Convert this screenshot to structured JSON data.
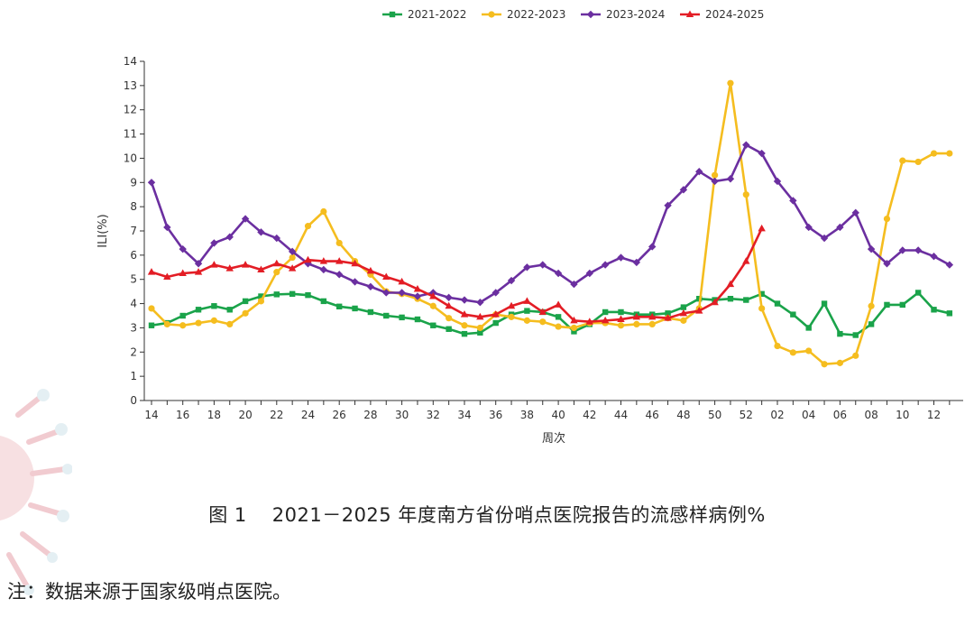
{
  "chart_data": {
    "type": "line",
    "title": "",
    "xlabel": "周次",
    "ylabel": "ILI(%)",
    "ylim": [
      0,
      14
    ],
    "yticks": [
      0,
      1,
      2,
      3,
      4,
      5,
      6,
      7,
      8,
      9,
      10,
      11,
      12,
      13,
      14
    ],
    "x_tick_labels": [
      "14",
      "16",
      "18",
      "20",
      "22",
      "24",
      "26",
      "28",
      "30",
      "32",
      "34",
      "36",
      "38",
      "40",
      "42",
      "44",
      "46",
      "48",
      "50",
      "52",
      "02",
      "04",
      "06",
      "08",
      "10",
      "12"
    ],
    "weeks": [
      14,
      15,
      16,
      17,
      18,
      19,
      20,
      21,
      22,
      23,
      24,
      25,
      26,
      27,
      28,
      29,
      30,
      31,
      32,
      33,
      34,
      35,
      36,
      37,
      38,
      39,
      40,
      41,
      42,
      43,
      44,
      45,
      46,
      47,
      48,
      49,
      50,
      51,
      52,
      1,
      2,
      3,
      4,
      5,
      6,
      7,
      8,
      9,
      10,
      11,
      12,
      13
    ],
    "grid": false,
    "legend_position": "top",
    "series": [
      {
        "name": "2021-2022",
        "color": "#1aa34a",
        "marker": "square",
        "values": [
          3.1,
          3.2,
          3.5,
          3.75,
          3.9,
          3.75,
          4.1,
          4.3,
          4.38,
          4.4,
          4.35,
          4.1,
          3.88,
          3.8,
          3.65,
          3.5,
          3.43,
          3.35,
          3.1,
          2.95,
          2.75,
          2.8,
          3.2,
          3.55,
          3.7,
          3.65,
          3.45,
          2.85,
          3.15,
          3.65,
          3.65,
          3.55,
          3.55,
          3.6,
          3.85,
          4.2,
          4.15,
          4.2,
          4.15,
          4.4,
          4.0,
          3.55,
          3.0,
          4.0,
          2.75,
          2.7,
          3.15,
          3.95,
          3.95,
          4.45,
          3.75,
          3.6
        ]
      },
      {
        "name": "2022-2023",
        "color": "#f5bd1f",
        "marker": "circle",
        "values": [
          3.8,
          3.15,
          3.1,
          3.2,
          3.3,
          3.15,
          3.6,
          4.1,
          5.3,
          5.9,
          7.2,
          7.8,
          6.5,
          5.75,
          5.2,
          4.5,
          4.4,
          4.2,
          3.9,
          3.4,
          3.1,
          3.0,
          3.55,
          3.45,
          3.3,
          3.25,
          3.05,
          3.0,
          3.2,
          3.2,
          3.1,
          3.15,
          3.15,
          3.4,
          3.3,
          3.8,
          9.3,
          13.1,
          8.5,
          3.8,
          2.25,
          1.98,
          2.05,
          1.5,
          1.55,
          1.85,
          3.9,
          7.5,
          9.9,
          9.85,
          10.2,
          10.2
        ]
      },
      {
        "name": "2023-2024",
        "color": "#6b2fa0",
        "marker": "diamond",
        "values": [
          9.0,
          7.15,
          6.25,
          5.65,
          6.5,
          6.75,
          7.5,
          6.95,
          6.7,
          6.15,
          5.65,
          5.4,
          5.2,
          4.9,
          4.7,
          4.45,
          4.45,
          4.3,
          4.45,
          4.25,
          4.15,
          4.05,
          4.45,
          4.95,
          5.5,
          5.6,
          5.25,
          4.8,
          5.25,
          5.6,
          5.9,
          5.7,
          6.35,
          8.05,
          8.7,
          9.45,
          9.05,
          9.15,
          10.55,
          10.2,
          9.05,
          8.25,
          7.15,
          6.7,
          7.15,
          7.75,
          6.25,
          5.65,
          6.2,
          6.2,
          5.95,
          5.6
        ]
      },
      {
        "name": "2024-2025",
        "color": "#e31d25",
        "marker": "triangle",
        "values": [
          5.3,
          5.1,
          5.25,
          5.3,
          5.6,
          5.45,
          5.6,
          5.4,
          5.65,
          5.45,
          5.8,
          5.75,
          5.75,
          5.65,
          5.35,
          5.1,
          4.9,
          4.6,
          4.3,
          3.9,
          3.55,
          3.45,
          3.55,
          3.9,
          4.1,
          3.65,
          3.95,
          3.3,
          3.25,
          3.3,
          3.35,
          3.45,
          3.45,
          3.4,
          3.6,
          3.7,
          4.05,
          4.8,
          5.75,
          7.1
        ]
      }
    ]
  },
  "caption": {
    "figure_label": "图 1",
    "title": "2021－2025 年度南方省份哨点医院报告的流感样病例%"
  },
  "note": "注：数据来源于国家级哨点医院。",
  "colors": {
    "axis": "#333333",
    "decoration": "#e8a0a8"
  }
}
